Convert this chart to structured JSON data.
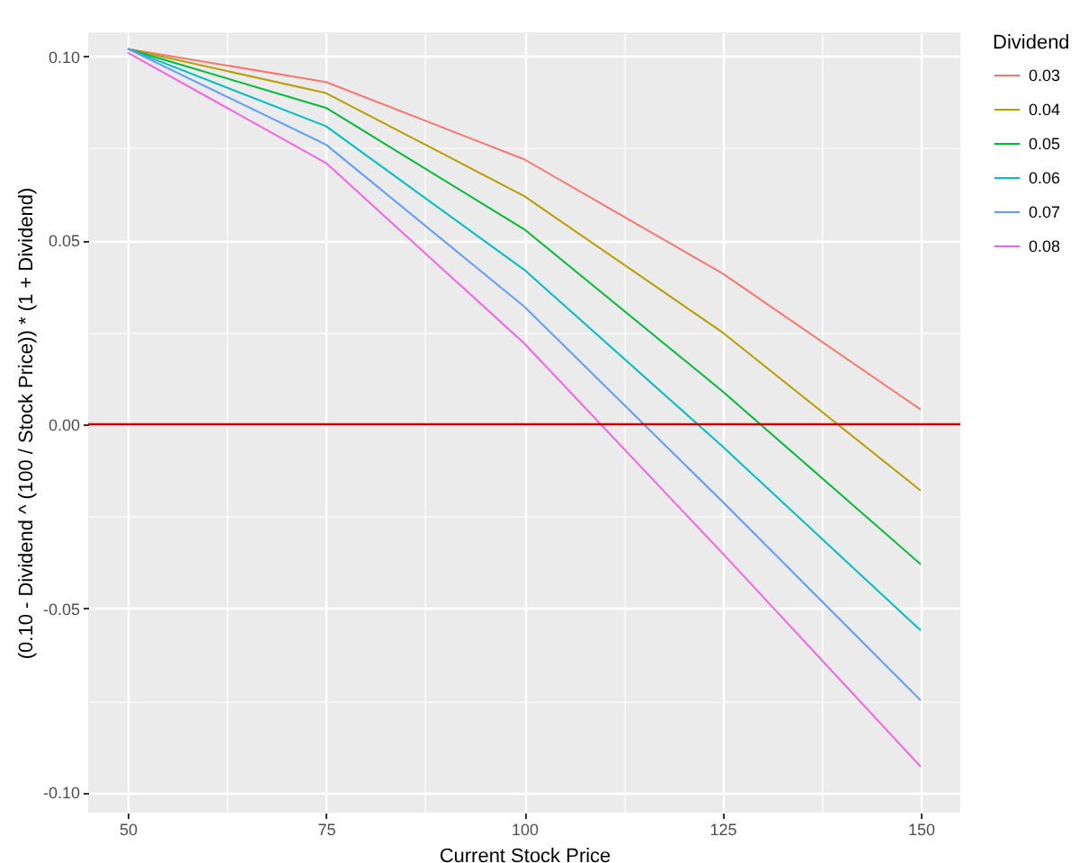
{
  "chart_data": {
    "type": "line",
    "xlabel": "Current Stock Price",
    "ylabel": "(0.10 - Dividend ^ (100 / Stock Price)) * (1 + Dividend)",
    "legend_title": "Dividend",
    "x": [
      50,
      75,
      100,
      125,
      150
    ],
    "series": [
      {
        "name": "0.03",
        "color": "#f8766d",
        "values": [
          0.102,
          0.093,
          0.072,
          0.041,
          0.004
        ]
      },
      {
        "name": "0.04",
        "color": "#b79f00",
        "values": [
          0.102,
          0.09,
          0.062,
          0.025,
          -0.018
        ]
      },
      {
        "name": "0.05",
        "color": "#00ba38",
        "values": [
          0.102,
          0.086,
          0.053,
          0.009,
          -0.038
        ]
      },
      {
        "name": "0.06",
        "color": "#00bfc4",
        "values": [
          0.102,
          0.081,
          0.042,
          -0.006,
          -0.056
        ]
      },
      {
        "name": "0.07",
        "color": "#619cff",
        "values": [
          0.102,
          0.076,
          0.032,
          -0.021,
          -0.075
        ]
      },
      {
        "name": "0.08",
        "color": "#f564e3",
        "values": [
          0.101,
          0.071,
          0.022,
          -0.035,
          -0.093
        ]
      }
    ],
    "xlim": [
      45,
      155
    ],
    "ylim": [
      -0.1055,
      0.1065
    ],
    "xticks": [
      50,
      {
        "value": 62.5,
        "label": null
      },
      75,
      {
        "value": 87.5,
        "label": null
      },
      100,
      {
        "value": 112.5,
        "label": null
      },
      125,
      {
        "value": 137.5,
        "label": null
      },
      150
    ],
    "yticks": [
      {
        "value": -0.1,
        "label": "-0.10"
      },
      {
        "value": -0.075,
        "label": null
      },
      {
        "value": -0.05,
        "label": "-0.05"
      },
      {
        "value": -0.025,
        "label": null
      },
      {
        "value": 0,
        "label": "0.00"
      },
      {
        "value": 0.025,
        "label": null
      },
      {
        "value": 0.05,
        "label": "0.05"
      },
      {
        "value": 0.075,
        "label": null
      },
      {
        "value": 0.1,
        "label": "0.10"
      }
    ],
    "ref_lines": [
      {
        "axis": "y",
        "value": 0,
        "color": "#cc0000"
      }
    ],
    "grid": true,
    "legend": "right",
    "marker": "none",
    "line_style": "solid"
  }
}
